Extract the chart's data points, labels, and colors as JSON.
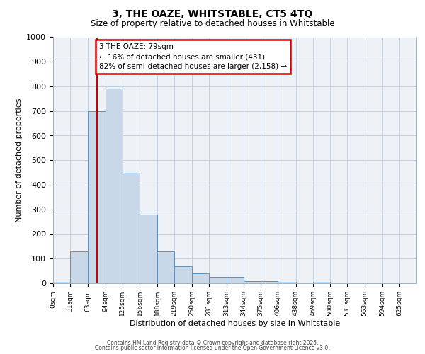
{
  "title1": "3, THE OAZE, WHITSTABLE, CT5 4TQ",
  "title2": "Size of property relative to detached houses in Whitstable",
  "xlabel": "Distribution of detached houses by size in Whitstable",
  "ylabel": "Number of detached properties",
  "bin_labels": [
    "0sqm",
    "31sqm",
    "63sqm",
    "94sqm",
    "125sqm",
    "156sqm",
    "188sqm",
    "219sqm",
    "250sqm",
    "281sqm",
    "313sqm",
    "344sqm",
    "375sqm",
    "406sqm",
    "438sqm",
    "469sqm",
    "500sqm",
    "531sqm",
    "563sqm",
    "594sqm",
    "625sqm"
  ],
  "bin_edges": [
    0,
    31,
    63,
    94,
    125,
    156,
    188,
    219,
    250,
    281,
    313,
    344,
    375,
    406,
    438,
    469,
    500,
    531,
    563,
    594,
    625,
    656
  ],
  "bar_heights": [
    5,
    130,
    700,
    790,
    450,
    280,
    130,
    70,
    40,
    25,
    25,
    10,
    10,
    5,
    0,
    5,
    0,
    0,
    0,
    0,
    0
  ],
  "bar_color": "#c8d8e8",
  "bar_edge_color": "#6090b8",
  "red_line_x": 79,
  "annotation_line1": "3 THE OAZE: 79sqm",
  "annotation_line2": "← 16% of detached houses are smaller (431)",
  "annotation_line3": "82% of semi-detached houses are larger (2,158) →",
  "annotation_edge_color": "#cc0000",
  "red_line_color": "#cc0000",
  "ylim": [
    0,
    1000
  ],
  "yticks": [
    0,
    100,
    200,
    300,
    400,
    500,
    600,
    700,
    800,
    900,
    1000
  ],
  "grid_color": "#c0c8d8",
  "bg_color": "#eef2f7",
  "footer1": "Contains HM Land Registry data © Crown copyright and database right 2025.",
  "footer2": "Contains public sector information licensed under the Open Government Licence v3.0."
}
